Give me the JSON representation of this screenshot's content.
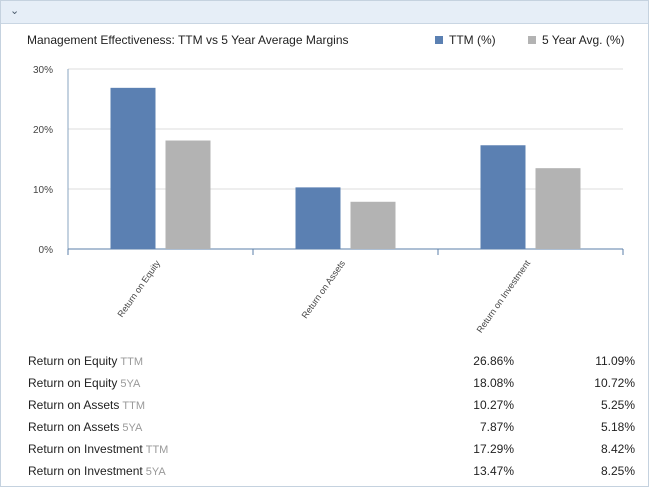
{
  "header": {
    "collapse_icon": "chevron-down-icon"
  },
  "chart_data": {
    "type": "bar",
    "title": "Management Effectiveness: TTM vs 5 Year Average Margins",
    "categories": [
      "Return on Equity",
      "Return on Assets",
      "Return on Investment"
    ],
    "series": [
      {
        "name": "TTM (%)",
        "color": "#5b80b2",
        "values": [
          26.86,
          10.27,
          17.29
        ]
      },
      {
        "name": "5 Year Avg. (%)",
        "color": "#b3b3b3",
        "values": [
          18.08,
          7.87,
          13.47
        ]
      }
    ],
    "yticks": [
      "0%",
      "10%",
      "20%",
      "30%"
    ],
    "ylim": [
      0,
      30
    ],
    "grid": true,
    "legend": "top-right"
  },
  "table": {
    "rows": [
      {
        "label": "Return on Equity",
        "tag": "TTM",
        "value1": "26.86%",
        "value2": "11.09%"
      },
      {
        "label": "Return on Equity",
        "tag": "5YA",
        "value1": "18.08%",
        "value2": "10.72%"
      },
      {
        "label": "Return on Assets",
        "tag": "TTM",
        "value1": "10.27%",
        "value2": "5.25%"
      },
      {
        "label": "Return on Assets",
        "tag": "5YA",
        "value1": "7.87%",
        "value2": "5.18%"
      },
      {
        "label": "Return on Investment",
        "tag": "TTM",
        "value1": "17.29%",
        "value2": "8.42%"
      },
      {
        "label": "Return on Investment",
        "tag": "5YA",
        "value1": "13.47%",
        "value2": "8.25%"
      }
    ]
  }
}
